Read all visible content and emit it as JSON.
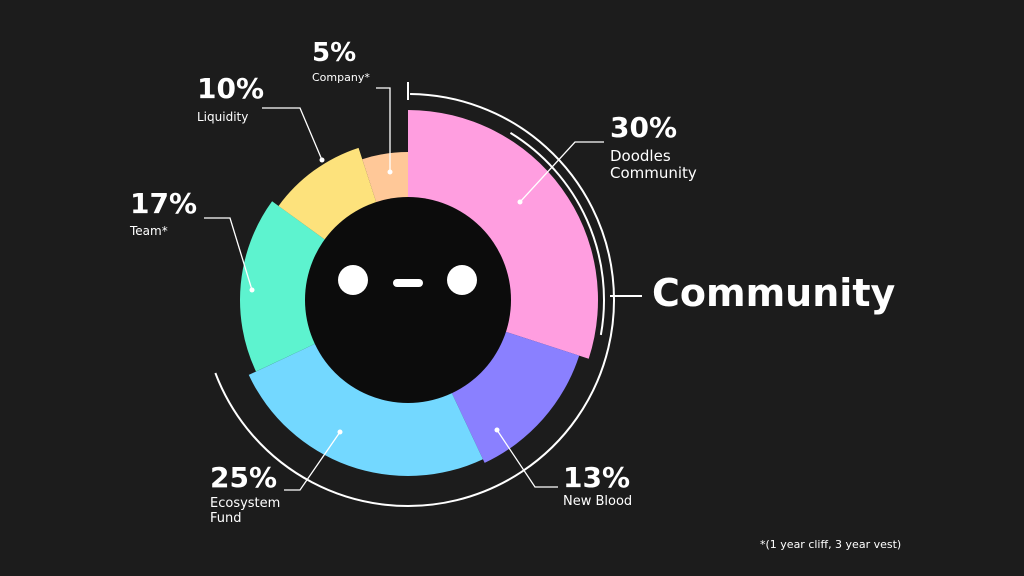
{
  "chart_data": {
    "type": "pie",
    "categories": [
      "Doodles Community",
      "New Blood",
      "Ecosystem Fund",
      "Team*",
      "Liquidity",
      "Company*"
    ],
    "values": [
      30,
      13,
      25,
      17,
      10,
      5
    ],
    "value_labels": [
      "30%",
      "13%",
      "25%",
      "17%",
      "10%",
      "5%"
    ],
    "colors": [
      "#ff9ee0",
      "#8a80ff",
      "#73d8ff",
      "#5df3cf",
      "#fde27c",
      "#ffc898"
    ],
    "annotation": "Community",
    "footnote": "*(1 year cliff, 3 year vest)"
  }
}
